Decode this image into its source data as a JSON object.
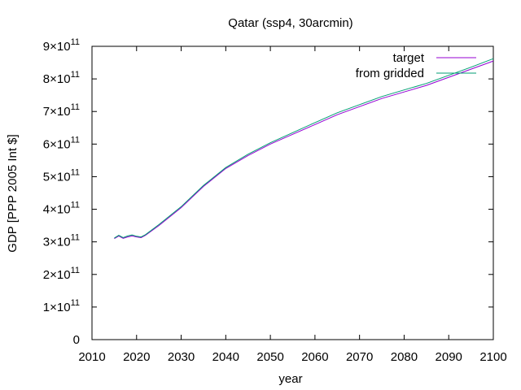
{
  "chart_data": {
    "type": "line",
    "title": "Qatar (ssp4, 30arcmin)",
    "xlabel": "year",
    "ylabel": "GDP [PPP 2005 Int $]",
    "xlim": [
      2010,
      2100
    ],
    "ylim": [
      0,
      900000000000
    ],
    "xticks": [
      "2010",
      "2020",
      "2030",
      "2040",
      "2050",
      "2060",
      "2070",
      "2080",
      "2090",
      "2100"
    ],
    "yticks": [
      {
        "value": 0,
        "mantissa": "0",
        "exp": ""
      },
      {
        "value": 100000000000,
        "mantissa": "1×10",
        "exp": "11"
      },
      {
        "value": 200000000000,
        "mantissa": "2×10",
        "exp": "11"
      },
      {
        "value": 300000000000,
        "mantissa": "3×10",
        "exp": "11"
      },
      {
        "value": 400000000000,
        "mantissa": "4×10",
        "exp": "11"
      },
      {
        "value": 500000000000,
        "mantissa": "5×10",
        "exp": "11"
      },
      {
        "value": 600000000000,
        "mantissa": "6×10",
        "exp": "11"
      },
      {
        "value": 700000000000,
        "mantissa": "7×10",
        "exp": "11"
      },
      {
        "value": 800000000000,
        "mantissa": "8×10",
        "exp": "11"
      },
      {
        "value": 900000000000,
        "mantissa": "9×10",
        "exp": "11"
      }
    ],
    "legend_position": "top-right",
    "grid": false,
    "series": [
      {
        "name": "target",
        "color": "#9400d3",
        "x": [
          2015,
          2016,
          2017,
          2018,
          2019,
          2020,
          2021,
          2022,
          2025,
          2030,
          2035,
          2040,
          2045,
          2050,
          2055,
          2060,
          2065,
          2070,
          2075,
          2080,
          2085,
          2090,
          2095,
          2100
        ],
        "y": [
          310000000000,
          318000000000,
          311000000000,
          315000000000,
          318000000000,
          315000000000,
          313000000000,
          320000000000,
          350000000000,
          405000000000,
          470000000000,
          525000000000,
          565000000000,
          600000000000,
          630000000000,
          660000000000,
          690000000000,
          715000000000,
          740000000000,
          760000000000,
          780000000000,
          805000000000,
          830000000000,
          855000000000
        ]
      },
      {
        "name": "from gridded",
        "color": "#009e73",
        "x": [
          2015,
          2016,
          2017,
          2018,
          2019,
          2020,
          2021,
          2022,
          2025,
          2030,
          2035,
          2040,
          2045,
          2050,
          2055,
          2060,
          2065,
          2070,
          2075,
          2080,
          2085,
          2090,
          2095,
          2100
        ],
        "y": [
          312000000000,
          320000000000,
          313000000000,
          318000000000,
          321000000000,
          317000000000,
          315000000000,
          322000000000,
          353000000000,
          408000000000,
          473000000000,
          528000000000,
          569000000000,
          604000000000,
          635000000000,
          666000000000,
          696000000000,
          721000000000,
          746000000000,
          766000000000,
          786000000000,
          811000000000,
          836000000000,
          862000000000
        ]
      }
    ]
  }
}
